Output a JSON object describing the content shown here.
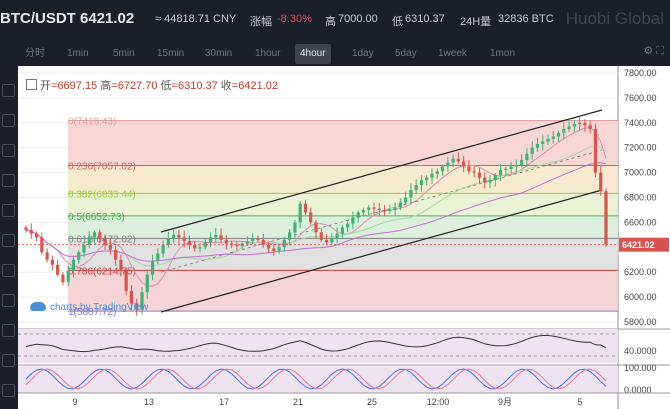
{
  "header": {
    "pair": "BTC/USDT",
    "price": "6421.02",
    "cny": "≈ 44818.71 CNY",
    "change_label": "涨幅",
    "change_value": "-8.30%",
    "high_label": "高",
    "high_value": "7000.00",
    "low_label": "低",
    "low_value": "6310.37",
    "volume_label": "24H量",
    "volume_value": "32836 BTC",
    "brand": "Huobi Global"
  },
  "intervals": [
    "分时",
    "1min",
    "5min",
    "15min",
    "30min",
    "1hour",
    "4hour",
    "1day",
    "5day",
    "1week",
    "1mon"
  ],
  "active_interval": "4hour",
  "ohlc": {
    "open_label": "开",
    "open": "6697.15",
    "high_label": "高",
    "high": "6727.70",
    "low_label": "低",
    "low": "6310.37",
    "close_label": "收",
    "close": "6421.02"
  },
  "watermark": "charts by TradingView",
  "chart_data": {
    "type": "candlestick",
    "y_axis": [
      "7800.00",
      "7600.00",
      "7400.00",
      "7200.00",
      "7000.00",
      "6800.00",
      "6600.00",
      "6400.00",
      "6200.00",
      "6000.00",
      "5800.00"
    ],
    "ylim": [
      5760,
      7840
    ],
    "last_price": "6421.02",
    "x_ticks": [
      "9",
      "13",
      "17",
      "21",
      "25",
      "12:00",
      "9月",
      "5"
    ],
    "fib_levels": [
      {
        "label": "0(7418.43)",
        "value": 7418.43,
        "color": "#e0a0a0"
      },
      {
        "label": "0.236(7057.02)",
        "value": 7057.02,
        "color": "#d06060"
      },
      {
        "label": "0.382(6833.44)",
        "value": 6833.44,
        "color": "#9acd32"
      },
      {
        "label": "0.5(6652.73)",
        "value": 6652.73,
        "color": "#4caf50"
      },
      {
        "label": "0.618(6472.02)",
        "value": 6472.02,
        "color": "#808080"
      },
      {
        "label": "0.786(6214.75)",
        "value": 6214.75,
        "color": "#c84040"
      },
      {
        "label": "1(5887.72)",
        "value": 5887.72,
        "color": "#7b7bd6"
      }
    ],
    "closes": [
      6540,
      6510,
      6480,
      6360,
      6300,
      6260,
      6180,
      6120,
      6210,
      6300,
      6360,
      6420,
      6480,
      6520,
      6470,
      6420,
      6380,
      6300,
      6210,
      6050,
      5950,
      5900,
      6040,
      6180,
      6290,
      6350,
      6420,
      6470,
      6500,
      6480,
      6450,
      6420,
      6390,
      6400,
      6440,
      6480,
      6500,
      6460,
      6430,
      6420,
      6410,
      6430,
      6450,
      6470,
      6460,
      6420,
      6390,
      6370,
      6400,
      6460,
      6520,
      6600,
      6750,
      6680,
      6600,
      6520,
      6460,
      6440,
      6470,
      6510,
      6560,
      6590,
      6640,
      6680,
      6700,
      6720,
      6710,
      6700,
      6690,
      6700,
      6720,
      6760,
      6800,
      6860,
      6900,
      6940,
      6960,
      6990,
      7010,
      7050,
      7080,
      7110,
      7090,
      7050,
      7010,
      7000,
      6960,
      6920,
      6940,
      6980,
      7020,
      7030,
      7050,
      7060,
      7100,
      7150,
      7200,
      7230,
      7250,
      7270,
      7290,
      7320,
      7350,
      7370,
      7390,
      7400,
      7380,
      7350,
      7000,
      6850,
      6421
    ],
    "oscillator1": {
      "levels": [
        "40.0000"
      ]
    },
    "oscillator2": {
      "levels": [
        "100.000",
        "0.0000"
      ]
    }
  }
}
